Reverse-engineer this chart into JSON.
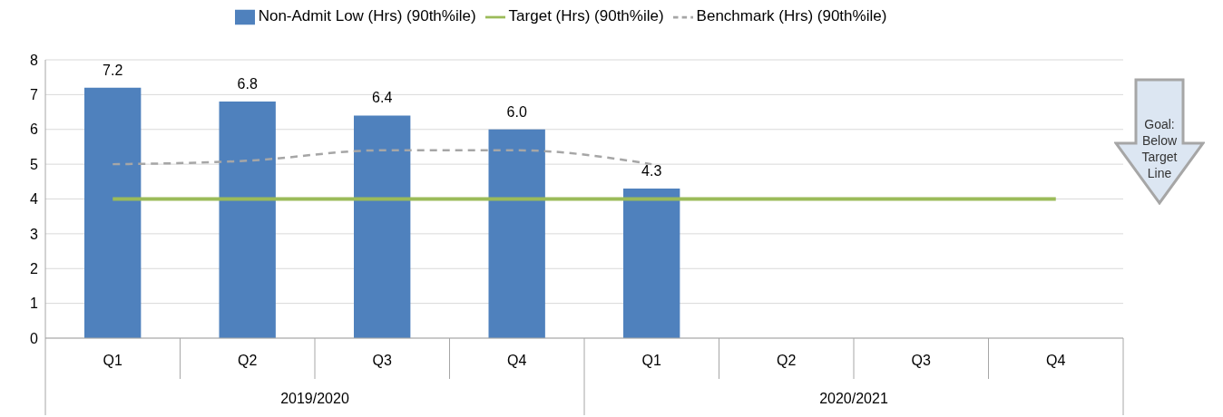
{
  "chart_data": {
    "type": "bar",
    "categories": [
      "Q1",
      "Q2",
      "Q3",
      "Q4",
      "Q1",
      "Q2",
      "Q3",
      "Q4"
    ],
    "series": [
      {
        "name": "Non-Admit Low (Hrs) (90th%ile)",
        "color": "#4f81bd",
        "values": [
          7.2,
          6.8,
          6.4,
          6.0,
          4.3,
          null,
          null,
          null
        ],
        "value_labels": [
          "7.2",
          "6.8",
          "6.4",
          "6.0",
          "4.3",
          null,
          null,
          null
        ]
      },
      {
        "name": "Target (Hrs) (90th%ile)",
        "type": "line",
        "color": "#9bbb59",
        "line_style": "solid",
        "values": [
          4,
          4,
          4,
          4,
          4,
          4,
          4,
          4
        ]
      },
      {
        "name": "Benchmark (Hrs) (90th%ile)",
        "type": "line",
        "color": "#a6a6a6",
        "line_style": "dashed",
        "values": [
          5.0,
          5.1,
          5.4,
          5.4,
          5.0,
          null,
          null,
          null
        ]
      }
    ],
    "ylim": [
      0,
      8
    ],
    "yticks": [
      0,
      1,
      2,
      3,
      4,
      5,
      6,
      7,
      8
    ],
    "grid": "y",
    "legend": "top",
    "marker": "none",
    "annotations": [
      "Goal: Below Target Line",
      "2019/2020",
      "2020/2021"
    ]
  }
}
